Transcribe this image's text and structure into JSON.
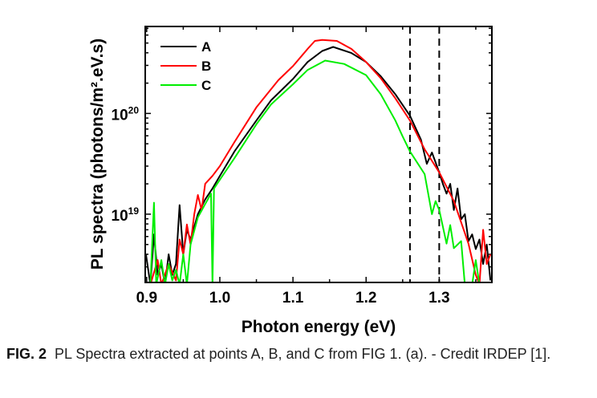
{
  "chart_data": {
    "type": "line",
    "xlabel": "Photon energy (eV)",
    "ylabel": "PL spectra (photons/m².eV.s)",
    "xlim": [
      0.898,
      1.372
    ],
    "ylim": [
      2.1e+18,
      7.3e+20
    ],
    "yscale": "log",
    "x_ticks": [
      0.9,
      1.0,
      1.1,
      1.2,
      1.3
    ],
    "x_tick_labels": [
      "0.9",
      "1.0",
      "1.1",
      "1.2",
      "1.3"
    ],
    "y_ticks": [
      1e+19,
      1e+20
    ],
    "y_tick_labels": [
      {
        "base": "10",
        "exp": "19"
      },
      {
        "base": "10",
        "exp": "20"
      }
    ],
    "legend_position": "top-left",
    "vertical_dashed_lines": [
      1.26,
      1.3
    ],
    "series": [
      {
        "name": "A",
        "color": "#000000",
        "x": [
          0.899,
          0.905,
          0.91,
          0.915,
          0.92,
          0.925,
          0.93,
          0.935,
          0.94,
          0.945,
          0.95,
          0.955,
          0.96,
          0.97,
          0.98,
          0.99,
          1.0,
          1.02,
          1.05,
          1.07,
          1.1,
          1.12,
          1.14,
          1.155,
          1.18,
          1.2,
          1.22,
          1.24,
          1.26,
          1.275,
          1.283,
          1.29,
          1.3,
          1.305,
          1.31,
          1.315,
          1.32,
          1.325,
          1.33,
          1.335,
          1.34,
          1.345,
          1.35,
          1.355,
          1.36,
          1.365,
          1.37
        ],
        "y": [
          4e+18,
          2e+18,
          6.3e+18,
          2.5e+18,
          3.2e+18,
          2e+18,
          4e+18,
          2.5e+18,
          3.2e+18,
          1.23e+19,
          4e+18,
          7e+18,
          5.6e+18,
          1e+19,
          1.4e+19,
          1.8e+19,
          2.4e+19,
          4.2e+19,
          8.5e+19,
          1.35e+20,
          2.2e+20,
          3.24e+20,
          4.17e+20,
          4.57e+20,
          3.98e+20,
          3.24e+20,
          2.34e+20,
          1.55e+20,
          9.5e+19,
          5.5e+19,
          3.16e+19,
          4.1e+19,
          2.6e+19,
          2e+19,
          1.6e+19,
          2e+19,
          1.1e+19,
          1.8e+19,
          8.9e+18,
          1e+19,
          5.4e+18,
          6.3e+18,
          4.5e+18,
          5.6e+18,
          3.2e+18,
          5e+18,
          2.2e+18
        ]
      },
      {
        "name": "B",
        "color": "#ff0000",
        "x": [
          0.905,
          0.915,
          0.92,
          0.93,
          0.94,
          0.945,
          0.95,
          0.955,
          0.96,
          0.965,
          0.97,
          0.975,
          0.98,
          0.99,
          1.0,
          1.02,
          1.05,
          1.08,
          1.1,
          1.12,
          1.13,
          1.14,
          1.16,
          1.18,
          1.2,
          1.22,
          1.24,
          1.26,
          1.28,
          1.3,
          1.32,
          1.34,
          1.35,
          1.355,
          1.36,
          1.365,
          1.37
        ],
        "y": [
          2e+18,
          3.5e+18,
          2e+18,
          3.2e+18,
          2.2e+18,
          5.6e+18,
          4e+18,
          7.9e+18,
          5e+18,
          1e+19,
          1.55e+19,
          1.1e+19,
          2e+19,
          2.4e+19,
          3e+19,
          5.2e+19,
          1.15e+20,
          2.14e+20,
          2.95e+20,
          4.37e+20,
          5.25e+20,
          5.37e+20,
          5.25e+20,
          4.37e+20,
          3.24e+20,
          2.24e+20,
          1.41e+20,
          8.5e+19,
          4.4e+19,
          2.6e+19,
          1.35e+19,
          5.1e+18,
          2.5e+18,
          2e+18,
          7e+18,
          3.2e+18,
          4e+18
        ]
      },
      {
        "name": "C",
        "color": "#00ee00",
        "x": [
          0.905,
          0.91,
          0.913,
          0.92,
          0.925,
          0.93,
          0.935,
          0.94,
          0.945,
          0.95,
          0.955,
          0.96,
          0.97,
          0.98,
          0.988,
          0.99,
          0.992,
          1.0,
          1.02,
          1.05,
          1.07,
          1.1,
          1.12,
          1.144,
          1.17,
          1.2,
          1.22,
          1.24,
          1.25,
          1.26,
          1.28,
          1.29,
          1.295,
          1.3,
          1.31,
          1.315,
          1.32,
          1.33,
          1.335,
          1.345,
          1.35,
          1.355
        ],
        "y": [
          2e+18,
          1.3e+19,
          2e+18,
          3.5e+18,
          2e+18,
          3.2e+18,
          2.2e+18,
          2.8e+18,
          2e+18,
          4e+18,
          2e+18,
          5e+18,
          9.3e+18,
          1.26e+19,
          1.6e+19,
          2e+18,
          1.8e+19,
          2.2e+19,
          3.6e+19,
          7.8e+19,
          1.23e+20,
          1.95e+20,
          2.7e+20,
          3.35e+20,
          3.1e+20,
          2.4e+20,
          1.55e+20,
          8.5e+19,
          5.9e+19,
          4.2e+19,
          2.5e+19,
          1e+19,
          1.35e+19,
          1.1e+19,
          5.1e+18,
          7.8e+18,
          4.6e+18,
          5.4e+18,
          2e+18,
          2e+18,
          3.5e+18,
          2e+18
        ]
      }
    ]
  },
  "caption": {
    "label": "FIG. 2",
    "text": "PL Spectra extracted at points A, B, and C from FIG 1. (a). - Credit IRDEP [1]."
  }
}
